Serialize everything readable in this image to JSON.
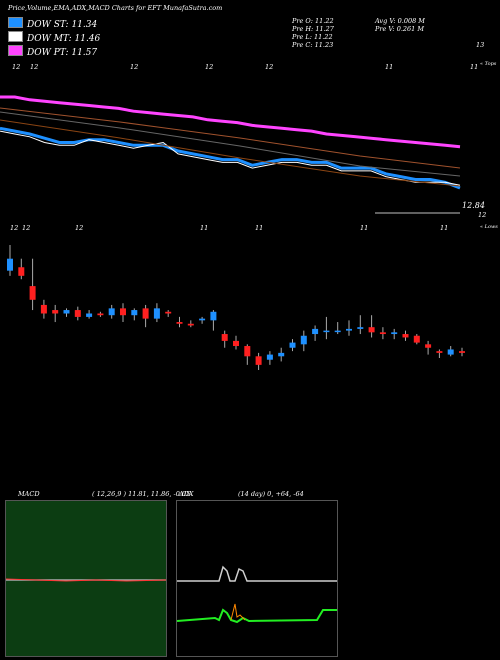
{
  "header": {
    "title": "Price,Volume,EMA,ADX,MACD Charts for EFT MunafaSutra.com",
    "pre_o": "Pre   O: 11.22",
    "pre_h": "Pre   H: 11.27",
    "pre_l": "Pre   L: 11.22",
    "pre_c": "Pre   C: 11.23",
    "avg_v": "Avg V: 0.008  M",
    "pre_v": "Pre   V: 0.261 M"
  },
  "legend": [
    {
      "label": "DOW ST: 11.34",
      "color": "#1e90ff"
    },
    {
      "label": "DOW MT: 11.46",
      "color": "#ffffff"
    },
    {
      "label": "DOW PT: 11.57",
      "color": "#ff44ff"
    }
  ],
  "price_panel": {
    "top_label": "13",
    "tops_label": "« Tops",
    "last_price_label": "12.84",
    "bottom_label": "12",
    "lows_label": "« Lows",
    "day_ticks": [
      "12",
      "12",
      "12",
      "12",
      "12",
      "11",
      "11"
    ],
    "candle_ticks": [
      "12",
      "12",
      "12",
      "11",
      "11",
      "11",
      "11"
    ]
  },
  "macd": {
    "label": "MACD",
    "params": "( 12,26,9 ) 11.81, 11.86, -0.05"
  },
  "adx": {
    "label": "ADX",
    "params": "(14  day) 0, +64, -64"
  },
  "chart_data": {
    "type": "line",
    "title": "Price,Volume,EMA,ADX,MACD Charts for EFT MunafaSutra.com",
    "series": [
      {
        "name": "DOW ST: 11.34",
        "color": "#1e90ff",
        "values": [
          12.99,
          12.98,
          12.97,
          12.955,
          12.94,
          12.94,
          12.95,
          12.95,
          12.94,
          12.93,
          12.93,
          12.93,
          12.91,
          12.9,
          12.89,
          12.88,
          12.88,
          12.86,
          12.87,
          12.88,
          12.88,
          12.87,
          12.87,
          12.85,
          12.85,
          12.85,
          12.83,
          12.82,
          12.81,
          12.81,
          12.8,
          12.78
        ]
      },
      {
        "name": "DOW MT: 11.46",
        "color": "#ffffff",
        "values": [
          12.98,
          12.97,
          12.96,
          12.94,
          12.93,
          12.93,
          12.95,
          12.94,
          12.93,
          12.92,
          12.93,
          12.94,
          12.9,
          12.89,
          12.88,
          12.87,
          12.87,
          12.85,
          12.86,
          12.87,
          12.87,
          12.86,
          12.86,
          12.84,
          12.84,
          12.84,
          12.82,
          12.81,
          12.8,
          12.8,
          12.8,
          12.79
        ]
      },
      {
        "name": "DOW PT: 11.57",
        "color": "#ff44ff",
        "values": [
          13.1,
          13.1,
          13.09,
          13.085,
          13.08,
          13.075,
          13.07,
          13.065,
          13.06,
          13.05,
          13.045,
          13.04,
          13.035,
          13.03,
          13.02,
          13.015,
          13.01,
          13.0,
          12.995,
          12.99,
          12.985,
          12.98,
          12.97,
          12.965,
          12.96,
          12.955,
          12.95,
          12.945,
          12.94,
          12.935,
          12.93,
          12.925
        ]
      }
    ],
    "candles": [
      {
        "o": 12.15,
        "c": 12.22,
        "h": 12.3,
        "l": 12.12
      },
      {
        "o": 12.17,
        "c": 12.12,
        "h": 12.22,
        "l": 12.1
      },
      {
        "o": 12.06,
        "c": 11.98,
        "h": 12.22,
        "l": 11.92
      },
      {
        "o": 11.95,
        "c": 11.9,
        "h": 11.98,
        "l": 11.87
      },
      {
        "o": 11.92,
        "c": 11.9,
        "h": 11.95,
        "l": 11.85
      },
      {
        "o": 11.9,
        "c": 11.92,
        "h": 11.93,
        "l": 11.88
      },
      {
        "o": 11.92,
        "c": 11.88,
        "h": 11.94,
        "l": 11.86
      },
      {
        "o": 11.88,
        "c": 11.9,
        "h": 11.92,
        "l": 11.87
      },
      {
        "o": 11.9,
        "c": 11.89,
        "h": 11.91,
        "l": 11.88
      },
      {
        "o": 11.89,
        "c": 11.93,
        "h": 11.95,
        "l": 11.87
      },
      {
        "o": 11.93,
        "c": 11.89,
        "h": 11.96,
        "l": 11.85
      },
      {
        "o": 11.89,
        "c": 11.92,
        "h": 11.93,
        "l": 11.86
      },
      {
        "o": 11.93,
        "c": 11.87,
        "h": 11.95,
        "l": 11.82
      },
      {
        "o": 11.87,
        "c": 11.93,
        "h": 11.96,
        "l": 11.85
      },
      {
        "o": 11.91,
        "c": 11.9,
        "h": 11.92,
        "l": 11.88
      },
      {
        "o": 11.85,
        "c": 11.84,
        "h": 11.88,
        "l": 11.82
      },
      {
        "o": 11.84,
        "c": 11.83,
        "h": 11.86,
        "l": 11.82
      },
      {
        "o": 11.86,
        "c": 11.87,
        "h": 11.88,
        "l": 11.84
      },
      {
        "o": 11.86,
        "c": 11.91,
        "h": 11.92,
        "l": 11.8
      },
      {
        "o": 11.78,
        "c": 11.74,
        "h": 11.8,
        "l": 11.7
      },
      {
        "o": 11.74,
        "c": 11.71,
        "h": 11.77,
        "l": 11.69
      },
      {
        "o": 11.71,
        "c": 11.65,
        "h": 11.72,
        "l": 11.6
      },
      {
        "o": 11.65,
        "c": 11.6,
        "h": 11.67,
        "l": 11.57
      },
      {
        "o": 11.63,
        "c": 11.66,
        "h": 11.68,
        "l": 11.6
      },
      {
        "o": 11.65,
        "c": 11.67,
        "h": 11.7,
        "l": 11.62
      },
      {
        "o": 11.7,
        "c": 11.73,
        "h": 11.75,
        "l": 11.68
      },
      {
        "o": 11.72,
        "c": 11.77,
        "h": 11.8,
        "l": 11.68
      },
      {
        "o": 11.78,
        "c": 11.81,
        "h": 11.83,
        "l": 11.74
      },
      {
        "o": 11.8,
        "c": 11.8,
        "h": 11.88,
        "l": 11.75
      },
      {
        "o": 11.8,
        "c": 11.8,
        "h": 11.85,
        "l": 11.78
      },
      {
        "o": 11.8,
        "c": 11.81,
        "h": 11.86,
        "l": 11.77
      },
      {
        "o": 11.81,
        "c": 11.82,
        "h": 11.89,
        "l": 11.78
      },
      {
        "o": 11.82,
        "c": 11.79,
        "h": 11.89,
        "l": 11.76
      },
      {
        "o": 11.79,
        "c": 11.78,
        "h": 11.82,
        "l": 11.75
      },
      {
        "o": 11.78,
        "c": 11.79,
        "h": 11.81,
        "l": 11.75
      },
      {
        "o": 11.78,
        "c": 11.76,
        "h": 11.8,
        "l": 11.74
      },
      {
        "o": 11.77,
        "c": 11.73,
        "h": 11.78,
        "l": 11.72
      },
      {
        "o": 11.72,
        "c": 11.7,
        "h": 11.74,
        "l": 11.66
      },
      {
        "o": 11.68,
        "c": 11.67,
        "h": 11.69,
        "l": 11.64
      },
      {
        "o": 11.66,
        "c": 11.69,
        "h": 11.71,
        "l": 11.65
      },
      {
        "o": 11.68,
        "c": 11.67,
        "h": 11.7,
        "l": 11.65
      }
    ]
  }
}
